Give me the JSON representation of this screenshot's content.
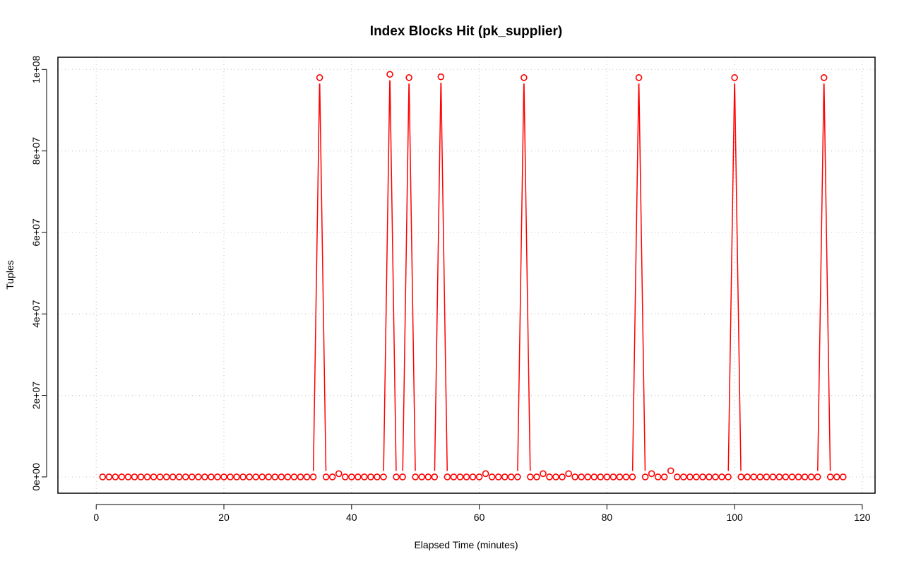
{
  "chart_data": {
    "type": "line",
    "title": "Index Blocks Hit (pk_supplier)",
    "xlabel": "Elapsed Time (minutes)",
    "ylabel": "Tuples",
    "xlim": [
      -6,
      122
    ],
    "ylim": [
      -4000000,
      103000000
    ],
    "xticks": [
      0,
      20,
      40,
      60,
      80,
      100,
      120
    ],
    "xtick_labels": [
      "0",
      "20",
      "40",
      "60",
      "80",
      "100",
      "120"
    ],
    "yticks": [
      0,
      20000000,
      40000000,
      60000000,
      80000000,
      100000000
    ],
    "ytick_labels": [
      "0e+00",
      "2e+07",
      "4e+07",
      "6e+07",
      "8e+07",
      "1e+08"
    ],
    "grid": true,
    "color": "#ff0000",
    "series": [
      {
        "x": [
          1,
          2,
          3,
          4,
          5,
          6,
          7,
          8,
          9,
          10,
          11,
          12,
          13,
          14,
          15,
          16,
          17,
          18,
          19,
          20,
          21,
          22,
          23,
          24,
          25,
          26,
          27,
          28,
          29,
          30,
          31,
          32,
          33,
          34,
          35,
          36,
          37,
          38,
          39,
          40,
          41,
          42,
          43,
          44,
          45,
          46,
          47,
          48,
          49,
          50,
          51,
          52,
          53,
          54,
          55,
          56,
          57,
          58,
          59,
          60,
          61,
          62,
          63,
          64,
          65,
          66,
          67,
          68,
          69,
          70,
          71,
          72,
          73,
          74,
          75,
          76,
          77,
          78,
          79,
          80,
          81,
          82,
          83,
          84,
          85,
          86,
          87,
          88,
          89,
          90,
          91,
          92,
          93,
          94,
          95,
          96,
          97,
          98,
          99,
          100,
          101,
          102,
          103,
          104,
          105,
          106,
          107,
          108,
          109,
          110,
          111,
          112,
          113,
          114,
          115,
          116,
          117
        ],
        "y": [
          0,
          0,
          0,
          0,
          0,
          0,
          0,
          0,
          0,
          0,
          0,
          0,
          0,
          0,
          0,
          0,
          0,
          0,
          0,
          0,
          0,
          0,
          0,
          0,
          0,
          0,
          0,
          0,
          0,
          0,
          0,
          0,
          0,
          0,
          98000000,
          0,
          0,
          800000,
          0,
          0,
          0,
          0,
          0,
          0,
          0,
          98800000,
          0,
          0,
          98000000,
          0,
          0,
          0,
          0,
          98200000,
          0,
          0,
          0,
          0,
          0,
          0,
          800000,
          0,
          0,
          0,
          0,
          0,
          98000000,
          0,
          0,
          800000,
          0,
          0,
          0,
          800000,
          0,
          0,
          0,
          0,
          0,
          0,
          0,
          0,
          0,
          0,
          98000000,
          0,
          800000,
          0,
          0,
          1500000,
          0,
          0,
          0,
          0,
          0,
          0,
          0,
          0,
          0,
          98000000,
          0,
          0,
          0,
          0,
          0,
          0,
          0,
          0,
          0,
          0,
          0,
          0,
          0,
          98000000,
          0,
          0,
          0
        ]
      }
    ]
  }
}
